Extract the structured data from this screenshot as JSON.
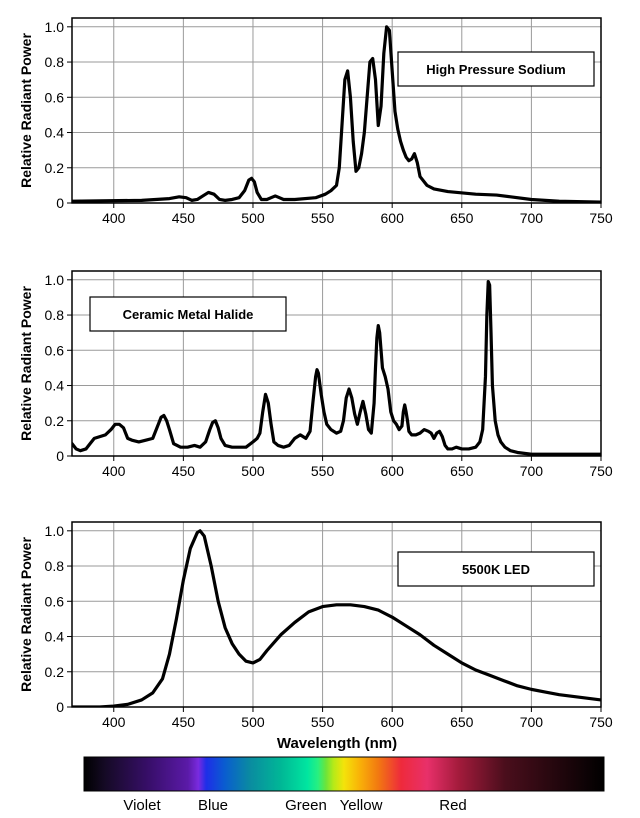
{
  "chart_data": [
    {
      "type": "line",
      "legend": "High Pressure Sodium",
      "ylabel": "Relative Radiant Power",
      "xlim": [
        370,
        750
      ],
      "ylim": [
        0,
        1.05
      ],
      "xticks": [
        400,
        450,
        500,
        550,
        600,
        650,
        700,
        750
      ],
      "yticks": [
        0,
        0.2,
        0.4,
        0.6,
        0.8,
        1.0
      ],
      "ytick_labels": [
        "0",
        "0.2",
        "0.4",
        "0.6",
        "0.8",
        "1.0"
      ],
      "grid": true,
      "legend_position": "top-right",
      "series": [
        {
          "x": [
            370,
            420,
            440,
            447,
            452,
            456,
            460,
            464,
            468,
            472,
            476,
            480,
            485,
            490,
            494,
            497,
            499,
            501,
            503,
            506,
            510,
            513,
            516,
            519,
            522,
            530,
            545,
            552,
            556,
            560,
            562,
            564,
            566,
            568,
            570,
            572,
            574,
            576,
            578,
            580,
            582,
            584,
            586,
            588,
            590,
            592,
            594,
            596,
            598,
            600,
            602,
            604,
            606,
            608,
            610,
            612,
            614,
            616,
            618,
            620,
            625,
            630,
            640,
            660,
            675,
            685,
            700,
            720,
            750
          ],
          "y": [
            0.01,
            0.015,
            0.025,
            0.035,
            0.03,
            0.015,
            0.02,
            0.04,
            0.06,
            0.05,
            0.02,
            0.015,
            0.02,
            0.03,
            0.07,
            0.13,
            0.14,
            0.12,
            0.06,
            0.02,
            0.02,
            0.03,
            0.04,
            0.03,
            0.02,
            0.02,
            0.03,
            0.05,
            0.07,
            0.1,
            0.2,
            0.45,
            0.7,
            0.75,
            0.6,
            0.35,
            0.18,
            0.2,
            0.28,
            0.4,
            0.6,
            0.8,
            0.82,
            0.7,
            0.44,
            0.55,
            0.85,
            1.0,
            0.98,
            0.75,
            0.52,
            0.42,
            0.35,
            0.3,
            0.26,
            0.24,
            0.25,
            0.28,
            0.23,
            0.15,
            0.1,
            0.08,
            0.065,
            0.05,
            0.045,
            0.035,
            0.02,
            0.01,
            0.005
          ]
        }
      ]
    },
    {
      "type": "line",
      "legend": "Ceramic Metal Halide",
      "ylabel": "Relative Radiant Power",
      "xlim": [
        370,
        750
      ],
      "ylim": [
        0,
        1.05
      ],
      "xticks": [
        400,
        450,
        500,
        550,
        600,
        650,
        700,
        750
      ],
      "yticks": [
        0,
        0.2,
        0.4,
        0.6,
        0.8,
        1.0
      ],
      "ytick_labels": [
        "0",
        "0.2",
        "0.4",
        "0.6",
        "0.8",
        "1.0"
      ],
      "grid": true,
      "legend_position": "top-left",
      "series": [
        {
          "x": [
            370,
            373,
            376,
            380,
            383,
            386,
            390,
            394,
            398,
            401,
            404,
            407,
            410,
            413,
            418,
            423,
            428,
            432,
            434,
            436,
            438,
            440,
            443,
            448,
            453,
            458,
            462,
            466,
            469,
            471,
            473,
            475,
            477,
            480,
            485,
            490,
            495,
            500,
            503,
            505,
            507,
            509,
            511,
            513,
            515,
            518,
            522,
            526,
            530,
            534,
            538,
            541,
            543,
            545,
            546,
            547,
            549,
            551,
            553,
            556,
            560,
            563,
            565,
            567,
            569,
            571,
            573,
            575,
            577,
            579,
            581,
            583,
            585,
            587,
            588,
            589,
            590,
            591,
            592,
            593,
            595,
            597,
            599,
            601,
            603,
            605,
            607,
            608,
            609,
            610,
            611,
            612,
            614,
            617,
            620,
            623,
            626,
            628,
            630,
            632,
            634,
            636,
            638,
            640,
            643,
            646,
            650,
            655,
            660,
            663,
            665,
            667,
            668,
            669,
            670,
            671,
            672,
            674,
            676,
            678,
            681,
            685,
            690,
            700,
            750
          ],
          "y": [
            0.07,
            0.04,
            0.03,
            0.04,
            0.07,
            0.1,
            0.11,
            0.12,
            0.15,
            0.18,
            0.18,
            0.16,
            0.1,
            0.09,
            0.08,
            0.09,
            0.1,
            0.18,
            0.22,
            0.23,
            0.2,
            0.15,
            0.07,
            0.05,
            0.05,
            0.06,
            0.05,
            0.08,
            0.15,
            0.19,
            0.2,
            0.16,
            0.1,
            0.06,
            0.05,
            0.05,
            0.05,
            0.08,
            0.1,
            0.13,
            0.25,
            0.35,
            0.3,
            0.18,
            0.08,
            0.06,
            0.05,
            0.06,
            0.1,
            0.12,
            0.1,
            0.14,
            0.3,
            0.45,
            0.49,
            0.47,
            0.35,
            0.25,
            0.18,
            0.15,
            0.13,
            0.14,
            0.2,
            0.33,
            0.38,
            0.33,
            0.24,
            0.18,
            0.25,
            0.31,
            0.24,
            0.15,
            0.13,
            0.3,
            0.5,
            0.67,
            0.74,
            0.7,
            0.6,
            0.5,
            0.45,
            0.38,
            0.25,
            0.2,
            0.18,
            0.15,
            0.17,
            0.25,
            0.29,
            0.25,
            0.2,
            0.14,
            0.12,
            0.12,
            0.13,
            0.15,
            0.14,
            0.13,
            0.1,
            0.13,
            0.14,
            0.11,
            0.06,
            0.04,
            0.04,
            0.05,
            0.04,
            0.04,
            0.05,
            0.08,
            0.15,
            0.45,
            0.8,
            0.99,
            0.97,
            0.7,
            0.4,
            0.2,
            0.12,
            0.08,
            0.05,
            0.03,
            0.02,
            0.01,
            0.01
          ]
        }
      ]
    },
    {
      "type": "line",
      "legend": "5500K LED",
      "ylabel": "Relative Radiant Power",
      "xlabel": "Wavelength (nm)",
      "xlim": [
        370,
        750
      ],
      "ylim": [
        0,
        1.05
      ],
      "xticks": [
        400,
        450,
        500,
        550,
        600,
        650,
        700,
        750
      ],
      "yticks": [
        0,
        0.2,
        0.4,
        0.6,
        0.8,
        1.0
      ],
      "ytick_labels": [
        "0",
        "0.2",
        "0.4",
        "0.6",
        "0.8",
        "1.0"
      ],
      "grid": true,
      "legend_position": "top-right",
      "series": [
        {
          "x": [
            370,
            390,
            400,
            410,
            420,
            428,
            435,
            440,
            445,
            450,
            455,
            460,
            462,
            465,
            470,
            475,
            480,
            485,
            490,
            495,
            500,
            505,
            510,
            520,
            530,
            540,
            550,
            560,
            570,
            580,
            590,
            600,
            610,
            620,
            630,
            640,
            650,
            660,
            670,
            680,
            690,
            700,
            710,
            720,
            730,
            740,
            750
          ],
          "y": [
            0,
            0,
            0.005,
            0.015,
            0.04,
            0.08,
            0.16,
            0.3,
            0.5,
            0.72,
            0.9,
            0.99,
            1.0,
            0.97,
            0.8,
            0.6,
            0.45,
            0.36,
            0.3,
            0.26,
            0.25,
            0.27,
            0.32,
            0.41,
            0.48,
            0.54,
            0.57,
            0.58,
            0.58,
            0.57,
            0.55,
            0.51,
            0.46,
            0.41,
            0.35,
            0.3,
            0.25,
            0.21,
            0.18,
            0.15,
            0.12,
            0.1,
            0.085,
            0.07,
            0.06,
            0.05,
            0.04
          ]
        }
      ]
    }
  ],
  "color_bar": {
    "labels": [
      "Violet",
      "Blue",
      "Green",
      "Yellow",
      "Red"
    ],
    "stops": [
      [
        "#000000",
        0.0
      ],
      [
        "#150a25",
        0.04
      ],
      [
        "#3a0f6e",
        0.13
      ],
      [
        "#5b1aa8",
        0.2
      ],
      [
        "#7a2be0",
        0.22
      ],
      [
        "#1e2ee8",
        0.235
      ],
      [
        "#0a5cd0",
        0.27
      ],
      [
        "#0a8ca0",
        0.32
      ],
      [
        "#00b896",
        0.38
      ],
      [
        "#00e6a0",
        0.43
      ],
      [
        "#28f080",
        0.45
      ],
      [
        "#6ce43a",
        0.465
      ],
      [
        "#b6ea18",
        0.48
      ],
      [
        "#f4e30a",
        0.5
      ],
      [
        "#f9b208",
        0.53
      ],
      [
        "#f27a10",
        0.565
      ],
      [
        "#ee2a3c",
        0.61
      ],
      [
        "#e8306a",
        0.66
      ],
      [
        "#a41b3c",
        0.72
      ],
      [
        "#4a0e1c",
        0.81
      ],
      [
        "#000000",
        1.0
      ]
    ]
  }
}
